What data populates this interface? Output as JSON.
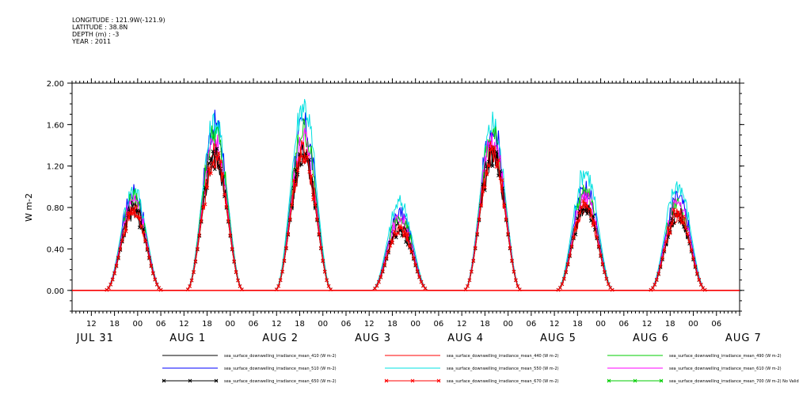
{
  "header": {
    "longitude": "LONGITUDE : 121.9W(-121.9)",
    "latitude": "LATITUDE : 38.8N",
    "depth": "DEPTH (m) : -3",
    "year": "YEAR : 2011"
  },
  "chart_data": {
    "type": "line",
    "ylabel": "W m-2",
    "ylim": [
      -0.2,
      2.0
    ],
    "yticks": [
      "2.00",
      "1.60",
      "1.20",
      "0.80",
      "0.40",
      "0.00"
    ],
    "ytick_values": [
      2.0,
      1.6,
      1.2,
      0.8,
      0.4,
      0.0
    ],
    "xticks": [
      "12",
      "18",
      "00",
      "06",
      "12",
      "18",
      "00",
      "06",
      "12",
      "18",
      "00",
      "06",
      "12",
      "18",
      "00",
      "06",
      "12",
      "18",
      "00",
      "06",
      "12",
      "18",
      "00",
      "06",
      "12",
      "18",
      "00",
      "06"
    ],
    "date_labels": [
      "JUL 31",
      "AUG 1",
      "AUG 2",
      "AUG 3",
      "AUG 4",
      "AUG 5",
      "AUG 6",
      "AUG 7"
    ],
    "x_range_hours": [
      7,
      180
    ],
    "daily_peaks": [
      {
        "day": "JUL 31",
        "center_hour": 23,
        "values": {
          "410": 0.8,
          "440": 0.78,
          "490": 0.9,
          "510": 0.95,
          "550": 0.98,
          "610": 0.88,
          "650": 0.75,
          "670": 0.77
        }
      },
      {
        "day": "AUG 1",
        "center_hour": 44,
        "values": {
          "410": 1.3,
          "440": 1.33,
          "490": 1.52,
          "510": 1.6,
          "550": 1.62,
          "610": 1.42,
          "650": 1.27,
          "670": 1.29
        }
      },
      {
        "day": "AUG 2",
        "center_hour": 67,
        "values": {
          "410": 1.32,
          "440": 1.35,
          "490": 1.55,
          "510": 1.6,
          "550": 1.8,
          "610": 1.45,
          "650": 1.3,
          "670": 1.32
        }
      },
      {
        "day": "AUG 3",
        "center_hour": 92,
        "values": {
          "410": 0.62,
          "440": 0.6,
          "490": 0.72,
          "510": 0.75,
          "550": 0.85,
          "610": 0.7,
          "650": 0.58,
          "670": 0.6
        }
      },
      {
        "day": "AUG 4",
        "center_hour": 116,
        "values": {
          "410": 1.32,
          "440": 1.35,
          "490": 1.5,
          "510": 1.58,
          "550": 1.6,
          "610": 1.45,
          "650": 1.3,
          "670": 1.32
        }
      },
      {
        "day": "AUG 5",
        "center_hour": 140,
        "values": {
          "410": 0.82,
          "440": 0.8,
          "490": 0.95,
          "510": 1.0,
          "550": 1.15,
          "610": 0.9,
          "650": 0.8,
          "670": 0.82
        }
      },
      {
        "day": "AUG 6",
        "center_hour": 164,
        "values": {
          "410": 0.75,
          "440": 0.72,
          "490": 0.85,
          "510": 0.9,
          "550": 1.02,
          "610": 0.85,
          "650": 0.72,
          "670": 0.75
        }
      }
    ],
    "series": [
      {
        "name": "sea_surface_downwelling_irradiance_mean_410 (W m-2)",
        "color": "#000000",
        "key": "410",
        "marker": "none"
      },
      {
        "name": "sea_surface_downwelling_irradiance_mean_440 (W m-2)",
        "color": "#ff0000",
        "key": "440",
        "marker": "none"
      },
      {
        "name": "sea_surface_downwelling_irradiance_mean_490 (W m-2)",
        "color": "#00cc00",
        "key": "490",
        "marker": "none"
      },
      {
        "name": "sea_surface_downwelling_irradiance_mean_510 (W m-2)",
        "color": "#0000ff",
        "key": "510",
        "marker": "none"
      },
      {
        "name": "sea_surface_downwelling_irradiance_mean_550 (W m-2)",
        "color": "#00e0e0",
        "key": "550",
        "marker": "none"
      },
      {
        "name": "sea_surface_downwelling_irradiance_mean_610 (W m-2)",
        "color": "#ff00ff",
        "key": "610",
        "marker": "none"
      },
      {
        "name": "sea_surface_downwelling_irradiance_mean_650 (W m-2)",
        "color": "#000000",
        "key": "650",
        "marker": "x"
      },
      {
        "name": "sea_surface_downwelling_irradiance_mean_670 (W m-2)",
        "color": "#ff0000",
        "key": "670",
        "marker": "x"
      },
      {
        "name": "sea_surface_downwelling_irradiance_mean_700 (W m-2) No Valid Data",
        "color": "#00cc00",
        "key": "700",
        "marker": "x"
      }
    ]
  }
}
